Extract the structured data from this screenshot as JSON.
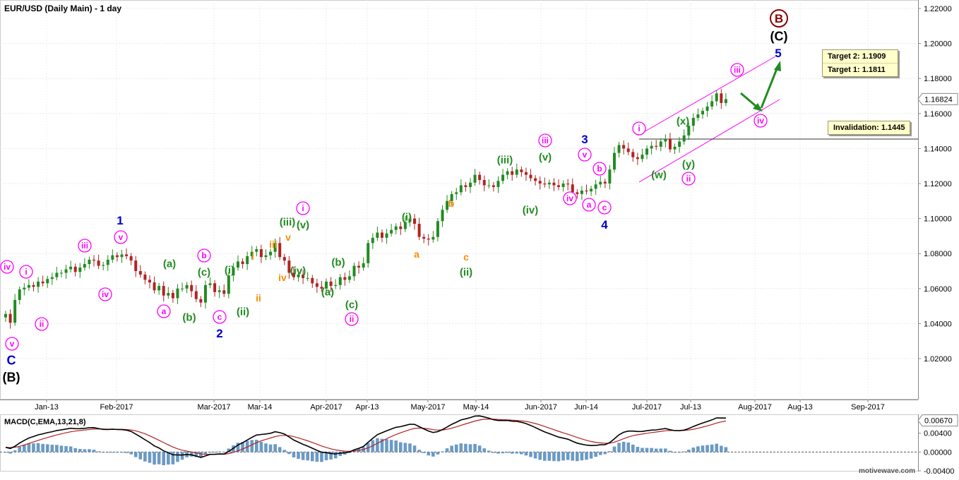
{
  "chart_title": "EUR/USD (Daily Main) - 1 day",
  "watermark": "motivewave.com",
  "colors": {
    "up_candle": "#228b22",
    "down_candle": "#b22222",
    "channel": "#ff00ff",
    "minute_label": "#ff00ff",
    "minuette_label": "#228b22",
    "subminuette_label": "#ff8c00",
    "minor_label": "#0000cc",
    "primary_label": "#8b0000",
    "macd_line": "#000000",
    "signal_line": "#b22222",
    "histogram": "#6b9ac4"
  },
  "targets": {
    "target2": "Target 2:  1.1909",
    "target1": "Target 1:  1.1811",
    "invalidation": "Invalidation:  1.1445"
  },
  "chart_data": [
    {
      "type": "candlestick",
      "title": "EUR/USD (Daily Main) - 1 day",
      "ylim": [
        1.0,
        1.22
      ],
      "y_ticks": [
        "1.02000",
        "1.04000",
        "1.06000",
        "1.08000",
        "1.10000",
        "1.12000",
        "1.14000",
        "1.16000",
        "1.18000",
        "1.20000",
        "1.22000"
      ],
      "last_price": "1.16824",
      "x_ticks": [
        "Jan-13",
        "Feb-2017",
        "Mar-2017",
        "Mar-14",
        "Apr-2017",
        "Apr-13",
        "May-2017",
        "May-14",
        "Jun-2017",
        "Jun-14",
        "Jul-2017",
        "Jul-13",
        "Aug-2017",
        "Aug-13",
        "Sep-2017"
      ],
      "grid": true,
      "closes": [
        1.0455,
        1.0405,
        1.0535,
        1.0595,
        1.0605,
        1.062,
        1.061,
        1.064,
        1.063,
        1.0655,
        1.0665,
        1.069,
        1.069,
        1.071,
        1.0725,
        1.0695,
        1.072,
        1.074,
        1.0765,
        1.076,
        1.073,
        1.0735,
        1.0765,
        1.079,
        1.078,
        1.0795,
        1.0785,
        1.076,
        1.07,
        1.068,
        1.065,
        1.0635,
        1.059,
        1.0615,
        1.056,
        1.0575,
        1.0545,
        1.06,
        1.06,
        1.062,
        1.0585,
        1.054,
        1.052,
        1.062,
        1.063,
        1.058,
        1.059,
        1.057,
        1.0675,
        1.072,
        1.0755,
        1.074,
        1.0785,
        1.081,
        1.0825,
        1.078,
        1.079,
        1.081,
        1.086,
        1.078,
        1.076,
        1.069,
        1.0665,
        1.068,
        1.066,
        1.066,
        1.063,
        1.061,
        1.06,
        1.064,
        1.0615,
        1.062,
        1.0665,
        1.065,
        1.067,
        1.073,
        1.072,
        1.0745,
        1.086,
        1.089,
        1.092,
        1.089,
        1.0915,
        1.0935,
        1.0955,
        1.094,
        1.098,
        1.1,
        1.097,
        1.0895,
        1.0885,
        1.088,
        1.0895,
        1.0985,
        1.105,
        1.11,
        1.114,
        1.115,
        1.119,
        1.118,
        1.1205,
        1.125,
        1.122,
        1.119,
        1.119,
        1.118,
        1.1215,
        1.125,
        1.127,
        1.125,
        1.128,
        1.1265,
        1.125,
        1.123,
        1.1215,
        1.12,
        1.1195,
        1.1205,
        1.119,
        1.118,
        1.12,
        1.1195,
        1.115,
        1.114,
        1.116,
        1.1155,
        1.117,
        1.1195,
        1.121,
        1.12,
        1.128,
        1.1375,
        1.142,
        1.14,
        1.138,
        1.135,
        1.134,
        1.1365,
        1.14,
        1.1415,
        1.141,
        1.144,
        1.1455,
        1.1395,
        1.141,
        1.144,
        1.1475,
        1.153,
        1.1575,
        1.1595,
        1.1615,
        1.164,
        1.167,
        1.1715,
        1.166,
        1.1682
      ],
      "macd": {
        "label": "MACD(C,EMA,13,21,8)",
        "ylim": [
          -0.004,
          0.008
        ],
        "y_ticks": [
          "0.00400",
          "0.00000",
          "-0.00400"
        ],
        "last_value": "0.00670"
      }
    }
  ],
  "wave_labels": [
    {
      "id": "lbl-iv-a",
      "text": "iv",
      "x": 10,
      "y": 378,
      "style": "circle",
      "color": "minute_label"
    },
    {
      "id": "lbl-i-a",
      "text": "i",
      "x": 37,
      "y": 385,
      "style": "circle",
      "color": "minute_label"
    },
    {
      "id": "lbl-ii-a",
      "text": "ii",
      "x": 59,
      "y": 459,
      "style": "circle",
      "color": "minute_label"
    },
    {
      "id": "lbl-v-a",
      "text": "v",
      "x": 17,
      "y": 487,
      "style": "circle",
      "color": "minute_label"
    },
    {
      "id": "lbl-C-a",
      "text": "C",
      "x": 16,
      "y": 510,
      "style": "plain",
      "color": "minor_label",
      "size": 18
    },
    {
      "id": "lbl-B-paren",
      "text": "(B)",
      "x": 16,
      "y": 534,
      "style": "plain",
      "color": "black",
      "size": 18
    },
    {
      "id": "lbl-iii-a",
      "text": "iii",
      "x": 120,
      "y": 348,
      "style": "circle",
      "color": "minute_label"
    },
    {
      "id": "lbl-iv-b",
      "text": "iv",
      "x": 149,
      "y": 417,
      "style": "circle",
      "color": "minute_label"
    },
    {
      "id": "lbl-1",
      "text": "1",
      "x": 170,
      "y": 312,
      "style": "plain",
      "color": "minor_label",
      "size": 17
    },
    {
      "id": "lbl-v-b",
      "text": "v",
      "x": 171,
      "y": 336,
      "style": "circle",
      "color": "minute_label"
    },
    {
      "id": "lbl-a-a",
      "text": "a",
      "x": 232,
      "y": 441,
      "style": "circle",
      "color": "minute_label"
    },
    {
      "id": "lbl-a-paren",
      "text": "(a)",
      "x": 240,
      "y": 373,
      "style": "plain",
      "color": "minuette_label",
      "size": 15
    },
    {
      "id": "lbl-b-paren-a",
      "text": "(b)",
      "x": 268,
      "y": 449,
      "style": "plain",
      "color": "minuette_label",
      "size": 15
    },
    {
      "id": "lbl-b-a",
      "text": "b",
      "x": 289,
      "y": 362,
      "style": "circle",
      "color": "minute_label"
    },
    {
      "id": "lbl-c-paren-a",
      "text": "(c)",
      "x": 289,
      "y": 385,
      "style": "plain",
      "color": "minuette_label",
      "size": 15
    },
    {
      "id": "lbl-c-a",
      "text": "c",
      "x": 311,
      "y": 449,
      "style": "circle",
      "color": "minute_label"
    },
    {
      "id": "lbl-2",
      "text": "2",
      "x": 311,
      "y": 472,
      "style": "plain",
      "color": "minor_label",
      "size": 17
    },
    {
      "id": "lbl-i-paren-a",
      "text": "(i)",
      "x": 325,
      "y": 382,
      "style": "plain",
      "color": "minuette_label",
      "size": 15
    },
    {
      "id": "lbl-ii-paren-a",
      "text": "(ii)",
      "x": 344,
      "y": 441,
      "style": "plain",
      "color": "minuette_label",
      "size": 15
    },
    {
      "id": "lbl-i-orange",
      "text": "i",
      "x": 358,
      "y": 363,
      "style": "plain",
      "color": "subminuette_label",
      "size": 14
    },
    {
      "id": "lbl-ii-orange",
      "text": "ii",
      "x": 366,
      "y": 422,
      "style": "plain",
      "color": "subminuette_label",
      "size": 14
    },
    {
      "id": "lbl-iii-orange",
      "text": "iii",
      "x": 387,
      "y": 346,
      "style": "plain",
      "color": "subminuette_label",
      "size": 14
    },
    {
      "id": "lbl-iv-orange",
      "text": "iv",
      "x": 400,
      "y": 393,
      "style": "plain",
      "color": "subminuette_label",
      "size": 14
    },
    {
      "id": "lbl-iii-paren-a",
      "text": "(iii)",
      "x": 407,
      "y": 314,
      "style": "plain",
      "color": "minuette_label",
      "size": 15
    },
    {
      "id": "lbl-v-orange",
      "text": "v",
      "x": 408,
      "y": 336,
      "style": "plain",
      "color": "subminuette_label",
      "size": 14
    },
    {
      "id": "lbl-iv-paren-a",
      "text": "(iv)",
      "x": 422,
      "y": 383,
      "style": "plain",
      "color": "minuette_label",
      "size": 15
    },
    {
      "id": "lbl-i-b",
      "text": "i",
      "x": 429,
      "y": 295,
      "style": "circle",
      "color": "minute_label"
    },
    {
      "id": "lbl-v-paren-a",
      "text": "(v)",
      "x": 429,
      "y": 318,
      "style": "plain",
      "color": "minuette_label",
      "size": 15
    },
    {
      "id": "lbl-a-paren-b",
      "text": "(a)",
      "x": 464,
      "y": 413,
      "style": "plain",
      "color": "minuette_label",
      "size": 15
    },
    {
      "id": "lbl-b-paren-b",
      "text": "(b)",
      "x": 479,
      "y": 371,
      "style": "plain",
      "color": "minuette_label",
      "size": 15
    },
    {
      "id": "lbl-c-paren-b",
      "text": "(c)",
      "x": 498,
      "y": 431,
      "style": "plain",
      "color": "minuette_label",
      "size": 15
    },
    {
      "id": "lbl-ii-b",
      "text": "ii",
      "x": 498,
      "y": 452,
      "style": "circle",
      "color": "minute_label"
    },
    {
      "id": "lbl-i-paren-b",
      "text": "(i)",
      "x": 576,
      "y": 307,
      "style": "plain",
      "color": "minuette_label",
      "size": 15
    },
    {
      "id": "lbl-a-orange",
      "text": "a",
      "x": 590,
      "y": 360,
      "style": "plain",
      "color": "subminuette_label",
      "size": 14
    },
    {
      "id": "lbl-b-orange",
      "text": "b",
      "x": 639,
      "y": 288,
      "style": "plain",
      "color": "subminuette_label",
      "size": 14
    },
    {
      "id": "lbl-c-orange",
      "text": "c",
      "x": 660,
      "y": 364,
      "style": "plain",
      "color": "subminuette_label",
      "size": 14
    },
    {
      "id": "lbl-ii-paren-b",
      "text": "(ii)",
      "x": 660,
      "y": 385,
      "style": "plain",
      "color": "minuette_label",
      "size": 15
    },
    {
      "id": "lbl-iii-paren-b",
      "text": "(iii)",
      "x": 715,
      "y": 226,
      "style": "plain",
      "color": "minuette_label",
      "size": 15
    },
    {
      "id": "lbl-iv-paren-b",
      "text": "(iv)",
      "x": 751,
      "y": 297,
      "style": "plain",
      "color": "minuette_label",
      "size": 15
    },
    {
      "id": "lbl-iii-b",
      "text": "iii",
      "x": 772,
      "y": 199,
      "style": "circle",
      "color": "minute_label"
    },
    {
      "id": "lbl-v-paren-b",
      "text": "(v)",
      "x": 772,
      "y": 222,
      "style": "plain",
      "color": "minuette_label",
      "size": 15
    },
    {
      "id": "lbl-iv-c",
      "text": "iv",
      "x": 807,
      "y": 281,
      "style": "circle",
      "color": "minute_label"
    },
    {
      "id": "lbl-3",
      "text": "3",
      "x": 828,
      "y": 197,
      "style": "plain",
      "color": "minor_label",
      "size": 17
    },
    {
      "id": "lbl-v-c",
      "text": "v",
      "x": 828,
      "y": 219,
      "style": "circle",
      "color": "minute_label"
    },
    {
      "id": "lbl-a-b",
      "text": "a",
      "x": 834,
      "y": 290,
      "style": "circle",
      "color": "minute_label"
    },
    {
      "id": "lbl-b-b",
      "text": "b",
      "x": 849,
      "y": 239,
      "style": "circle",
      "color": "minute_label"
    },
    {
      "id": "lbl-c-b",
      "text": "c",
      "x": 856,
      "y": 294,
      "style": "circle",
      "color": "minute_label"
    },
    {
      "id": "lbl-4",
      "text": "4",
      "x": 856,
      "y": 318,
      "style": "plain",
      "color": "minor_label",
      "size": 17
    },
    {
      "id": "lbl-i-c",
      "text": "i",
      "x": 905,
      "y": 182,
      "style": "circle",
      "color": "minute_label"
    },
    {
      "id": "lbl-w-paren",
      "text": "(w)",
      "x": 933,
      "y": 247,
      "style": "plain",
      "color": "minuette_label",
      "size": 15
    },
    {
      "id": "lbl-x-paren",
      "text": "(x)",
      "x": 967,
      "y": 171,
      "style": "plain",
      "color": "minuette_label",
      "size": 15
    },
    {
      "id": "lbl-y-paren",
      "text": "(y)",
      "x": 975,
      "y": 232,
      "style": "plain",
      "color": "minuette_label",
      "size": 15
    },
    {
      "id": "lbl-ii-c",
      "text": "ii",
      "x": 975,
      "y": 253,
      "style": "circle",
      "color": "minute_label"
    },
    {
      "id": "lbl-iii-c",
      "text": "iii",
      "x": 1044,
      "y": 99,
      "style": "circle",
      "color": "minute_label"
    },
    {
      "id": "lbl-iv-d",
      "text": "iv",
      "x": 1077,
      "y": 171,
      "style": "circle",
      "color": "minute_label"
    },
    {
      "id": "lbl-5",
      "text": "5",
      "x": 1102,
      "y": 75,
      "style": "plain",
      "color": "minor_label",
      "size": 17
    },
    {
      "id": "lbl-C-paren",
      "text": "(C)",
      "x": 1103,
      "y": 51,
      "style": "plain",
      "color": "black",
      "size": 18
    },
    {
      "id": "lbl-B-circle",
      "text": "B",
      "x": 1103,
      "y": 26,
      "style": "circle-big",
      "color": "primary_label"
    }
  ]
}
